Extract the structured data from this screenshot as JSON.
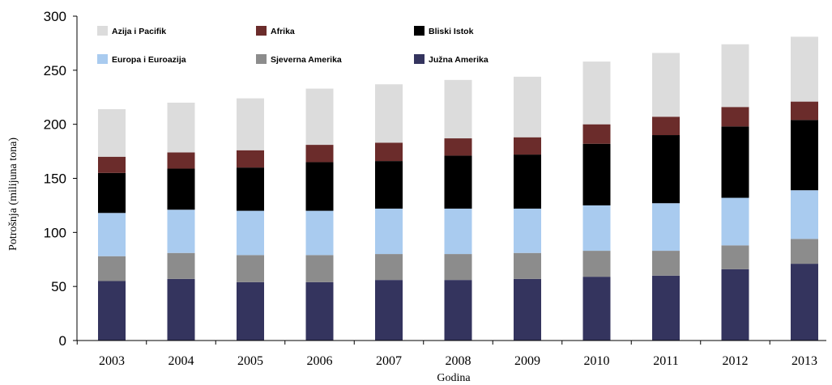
{
  "chart_data": {
    "type": "bar",
    "stacked": true,
    "title": "",
    "xlabel": "Godina",
    "ylabel": "Potrošnja (milijuna tona)",
    "ylim": [
      0,
      300
    ],
    "yticks": [
      "0",
      "50",
      "100",
      "150",
      "200",
      "250",
      "300"
    ],
    "categories": [
      "2003",
      "2004",
      "2005",
      "2006",
      "2007",
      "2008",
      "2009",
      "2010",
      "2011",
      "2012",
      "2013"
    ],
    "grid": false,
    "legend_position": "top",
    "series": [
      {
        "name": "Južna Amerika",
        "color": "#34345e",
        "values": [
          55,
          57,
          54,
          54,
          56,
          56,
          57,
          59,
          60,
          66,
          71
        ]
      },
      {
        "name": "Sjeverna Amerika",
        "color": "#8c8c8c",
        "values": [
          23,
          24,
          25,
          25,
          24,
          24,
          24,
          24,
          23,
          22,
          23
        ]
      },
      {
        "name": "Europa i Euroazija",
        "color": "#a9cbef",
        "values": [
          40,
          40,
          41,
          41,
          42,
          42,
          41,
          42,
          44,
          44,
          45
        ]
      },
      {
        "name": "Bliski Istok",
        "color": "#000000",
        "values": [
          37,
          38,
          40,
          45,
          44,
          49,
          50,
          57,
          63,
          66,
          65
        ]
      },
      {
        "name": "Afrika",
        "color": "#6b2c2b",
        "values": [
          15,
          15,
          16,
          16,
          17,
          16,
          16,
          18,
          17,
          18,
          17
        ]
      },
      {
        "name": "Azija i Pacifik",
        "color": "#dcdcdc",
        "values": [
          44,
          46,
          48,
          52,
          54,
          54,
          56,
          58,
          59,
          58,
          60
        ]
      }
    ],
    "legend_order": [
      "Azija i Pacifik",
      "Afrika",
      "Bliski Istok",
      "Europa i Euroazija",
      "Sjeverna Amerika",
      "Južna Amerika"
    ]
  }
}
